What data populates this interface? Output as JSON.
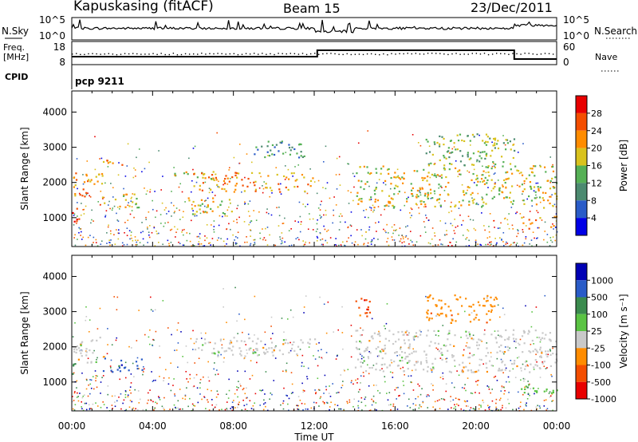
{
  "header": {
    "station": "Kapuskasing (fitACF)",
    "beam": "Beam 15",
    "date": "23/Dec/2011"
  },
  "strip": {
    "nsky_label": "N.Sky",
    "nsky_ticks": [
      "10^5",
      "10^0"
    ],
    "nsearch_label": "N.Search",
    "freq_label_1": "Freq.",
    "freq_label_2": "[MHz]",
    "freq_ticks": [
      "18",
      "8"
    ],
    "nave_label": "Nave",
    "nave_ticks": [
      "60",
      "0"
    ],
    "cpid_label": "CPID",
    "cpid_value": "pcp 9211"
  },
  "time_axis": {
    "label": "Time UT",
    "ticks": [
      "00:00",
      "04:00",
      "08:00",
      "12:00",
      "16:00",
      "20:00",
      "00:00"
    ],
    "range_hours": [
      0,
      24
    ]
  },
  "colors": {
    "power": [
      "#0000e6",
      "#2a5cc8",
      "#4c8a70",
      "#55b055",
      "#d9c21d",
      "#ff8c00",
      "#f44e00",
      "#e80000"
    ],
    "velocity": [
      "#e80000",
      "#f44e00",
      "#ff8c00",
      "#c9c9c9",
      "#5ac343",
      "#3b8b4e",
      "#2a5cc8",
      "#0000b4"
    ]
  },
  "chart_data": [
    {
      "type": "heatmap",
      "name": "power",
      "ylabel": "Slant Range [km]",
      "ylim": [
        180,
        4600
      ],
      "yticks": [
        1000,
        2000,
        3000,
        4000
      ],
      "xlim": [
        0,
        24
      ],
      "colorbar": {
        "label": "Power [dB]",
        "ticks": [
          "28",
          "24",
          "20",
          "16",
          "12",
          "8",
          "4"
        ],
        "range": [
          0,
          32
        ]
      },
      "echo_bands": [
        {
          "t": [
            0.0,
            1.5
          ],
          "r": [
            1550,
            2300
          ],
          "level": 5
        },
        {
          "t": [
            0.0,
            0.4
          ],
          "r": [
            700,
            1300
          ],
          "level": 6
        },
        {
          "t": [
            1.5,
            3.5
          ],
          "r": [
            1300,
            1700
          ],
          "level": 4
        },
        {
          "t": [
            1.5,
            2.5
          ],
          "r": [
            2500,
            2700
          ],
          "level": 5
        },
        {
          "t": [
            5.0,
            7.0
          ],
          "r": [
            2100,
            2350
          ],
          "level": 4
        },
        {
          "t": [
            6.0,
            12.0
          ],
          "r": [
            1750,
            2300
          ],
          "level": 5
        },
        {
          "t": [
            5.5,
            8.0
          ],
          "r": [
            1100,
            1600
          ],
          "level": 4
        },
        {
          "t": [
            9.0,
            11.5
          ],
          "r": [
            2700,
            3200
          ],
          "level": 2
        },
        {
          "t": [
            14.0,
            22.0
          ],
          "r": [
            1300,
            2500
          ],
          "level": 4
        },
        {
          "t": [
            17.5,
            22.0
          ],
          "r": [
            2500,
            3400
          ],
          "level": 3
        },
        {
          "t": [
            22.0,
            24.0
          ],
          "r": [
            1300,
            2500
          ],
          "level": 4
        },
        {
          "t": [
            22.0,
            24.0
          ],
          "r": [
            700,
            1050
          ],
          "level": 5
        }
      ]
    },
    {
      "type": "heatmap",
      "name": "velocity",
      "ylabel": "Slant Range [km]",
      "ylim": [
        180,
        4600
      ],
      "yticks": [
        1000,
        2000,
        3000,
        4000
      ],
      "xlim": [
        0,
        24
      ],
      "colorbar": {
        "label": "Velocity [m s^-1]",
        "ticks": [
          "1000",
          "500",
          "100",
          "25",
          "-25",
          "-100",
          "-500",
          "-1000"
        ]
      },
      "echo_bands": [
        {
          "t": [
            0.0,
            1.5
          ],
          "r": [
            1550,
            2300
          ],
          "class": 3
        },
        {
          "t": [
            0.0,
            0.4
          ],
          "r": [
            1200,
            1550
          ],
          "class": 5
        },
        {
          "t": [
            1.5,
            3.5
          ],
          "r": [
            1300,
            1700
          ],
          "class": 6
        },
        {
          "t": [
            6.0,
            12.0
          ],
          "r": [
            1750,
            2300
          ],
          "class": 3
        },
        {
          "t": [
            14.0,
            14.8
          ],
          "r": [
            2800,
            3400
          ],
          "class": 1
        },
        {
          "t": [
            14.0,
            22.0
          ],
          "r": [
            1300,
            2500
          ],
          "class": 3
        },
        {
          "t": [
            17.5,
            21.0
          ],
          "r": [
            2700,
            3500
          ],
          "class": 2
        },
        {
          "t": [
            22.0,
            24.0
          ],
          "r": [
            1300,
            2500
          ],
          "class": 3
        },
        {
          "t": [
            22.0,
            24.0
          ],
          "r": [
            700,
            1000
          ],
          "class": 4
        }
      ]
    }
  ]
}
